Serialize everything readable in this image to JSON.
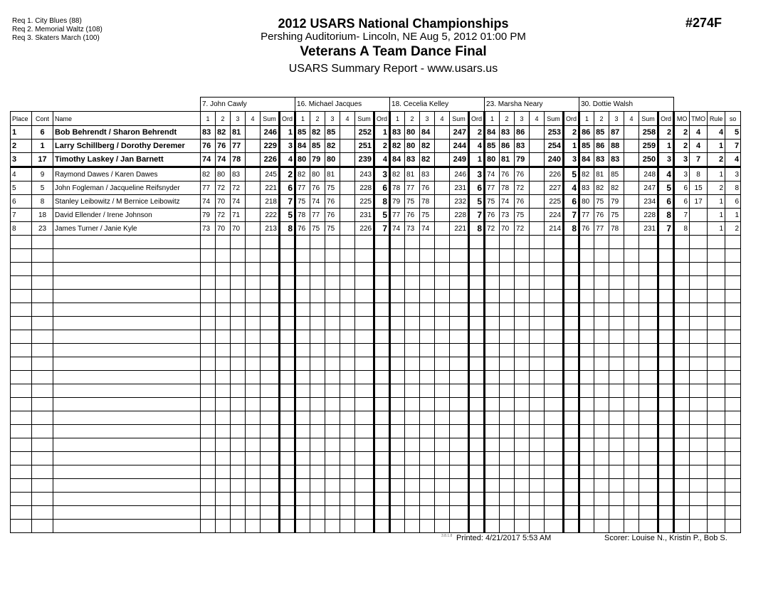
{
  "requirements": [
    "Req  1.  City Blues (88)",
    "Req  2.  Memorial Waltz (108)",
    "Req  3.  Skaters March (100)"
  ],
  "header": {
    "title": "2012 USARS National Championships",
    "venue": "Pershing Auditorium- Lincoln, NE  Aug 5, 2012  01:00 PM",
    "event": "Veterans A Team Dance Final",
    "report": "USARS Summary Report - www.usars.us",
    "event_number": "#274F"
  },
  "columns": {
    "place": "Place",
    "cont": "Cont",
    "name": "Name",
    "dances": [
      "1",
      "2",
      "3",
      "4"
    ],
    "sum": "Sum",
    "ord": "Ord",
    "mo": "MO",
    "tmo": "TMO",
    "rule": "Rule",
    "so": "so"
  },
  "judges": [
    "7.  John Cawly",
    "16.  Michael Jacques",
    "18.  Cecelia Kelley",
    "23.  Marsha Neary",
    "30.  Dottie Walsh"
  ],
  "rows": [
    {
      "place": "1",
      "cont": "6",
      "name": "Bob Behrendt / Sharon Behrendt",
      "scores": [
        [
          83,
          82,
          81,
          "",
          246,
          1
        ],
        [
          85,
          82,
          85,
          "",
          252,
          1
        ],
        [
          83,
          80,
          84,
          "",
          247,
          2
        ],
        [
          84,
          83,
          86,
          "",
          253,
          2
        ],
        [
          86,
          85,
          87,
          "",
          258,
          2
        ]
      ],
      "mo": "2",
      "tmo": "4",
      "rule": "4",
      "so": "5"
    },
    {
      "place": "2",
      "cont": "1",
      "name": "Larry Schillberg / Dorothy Deremer",
      "scores": [
        [
          76,
          76,
          77,
          "",
          229,
          3
        ],
        [
          84,
          85,
          82,
          "",
          251,
          2
        ],
        [
          82,
          80,
          82,
          "",
          244,
          4
        ],
        [
          85,
          86,
          83,
          "",
          254,
          1
        ],
        [
          85,
          86,
          88,
          "",
          259,
          1
        ]
      ],
      "mo": "2",
      "tmo": "4",
      "rule": "1",
      "so": "7"
    },
    {
      "place": "3",
      "cont": "17",
      "name": "Timothy Laskey / Jan Barnett",
      "scores": [
        [
          74,
          74,
          78,
          "",
          226,
          4
        ],
        [
          80,
          79,
          80,
          "",
          239,
          4
        ],
        [
          84,
          83,
          82,
          "",
          249,
          1
        ],
        [
          80,
          81,
          79,
          "",
          240,
          3
        ],
        [
          84,
          83,
          83,
          "",
          250,
          3
        ]
      ],
      "mo": "3",
      "tmo": "7",
      "rule": "2",
      "so": "4"
    },
    {
      "place": "4",
      "cont": "9",
      "name": "Raymond Dawes / Karen Dawes",
      "scores": [
        [
          82,
          80,
          83,
          "",
          245,
          2
        ],
        [
          82,
          80,
          81,
          "",
          243,
          3
        ],
        [
          82,
          81,
          83,
          "",
          246,
          3
        ],
        [
          74,
          76,
          76,
          "",
          226,
          5
        ],
        [
          82,
          81,
          85,
          "",
          248,
          4
        ]
      ],
      "mo": "3",
      "tmo": "8",
      "rule": "1",
      "so": "3"
    },
    {
      "place": "5",
      "cont": "5",
      "name": "John Fogleman / Jacqueline Reifsnyder",
      "scores": [
        [
          77,
          72,
          72,
          "",
          221,
          6
        ],
        [
          77,
          76,
          75,
          "",
          228,
          6
        ],
        [
          78,
          77,
          76,
          "",
          231,
          6
        ],
        [
          77,
          78,
          72,
          "",
          227,
          4
        ],
        [
          83,
          82,
          82,
          "",
          247,
          5
        ]
      ],
      "mo": "6",
      "tmo": "15",
      "rule": "2",
      "so": "8"
    },
    {
      "place": "6",
      "cont": "8",
      "name": "Stanley Leibowitz / M Bernice Leibowitz",
      "scores": [
        [
          74,
          70,
          74,
          "",
          218,
          7
        ],
        [
          75,
          74,
          76,
          "",
          225,
          8
        ],
        [
          79,
          75,
          78,
          "",
          232,
          5
        ],
        [
          75,
          74,
          76,
          "",
          225,
          6
        ],
        [
          80,
          75,
          79,
          "",
          234,
          6
        ]
      ],
      "mo": "6",
      "tmo": "17",
      "rule": "1",
      "so": "6"
    },
    {
      "place": "7",
      "cont": "18",
      "name": "David Ellender / Irene Johnson",
      "scores": [
        [
          79,
          72,
          71,
          "",
          222,
          5
        ],
        [
          78,
          77,
          76,
          "",
          231,
          5
        ],
        [
          77,
          76,
          75,
          "",
          228,
          7
        ],
        [
          76,
          73,
          75,
          "",
          224,
          7
        ],
        [
          77,
          76,
          75,
          "",
          228,
          8
        ]
      ],
      "mo": "7",
      "tmo": "",
      "rule": "1",
      "so": "1"
    },
    {
      "place": "8",
      "cont": "23",
      "name": "James Turner / Janie Kyle",
      "scores": [
        [
          73,
          70,
          70,
          "",
          213,
          8
        ],
        [
          76,
          75,
          75,
          "",
          226,
          7
        ],
        [
          74,
          73,
          74,
          "",
          221,
          8
        ],
        [
          72,
          70,
          72,
          "",
          214,
          8
        ],
        [
          76,
          77,
          78,
          "",
          231,
          7
        ]
      ],
      "mo": "8",
      "tmo": "",
      "rule": "1",
      "so": "2"
    }
  ],
  "footer": {
    "version": "3.8.1.8",
    "printed": "Printed:  4/21/2017  5:53 AM",
    "scorer": "Scorer:   Louise N., Kristin P., Bob S."
  }
}
